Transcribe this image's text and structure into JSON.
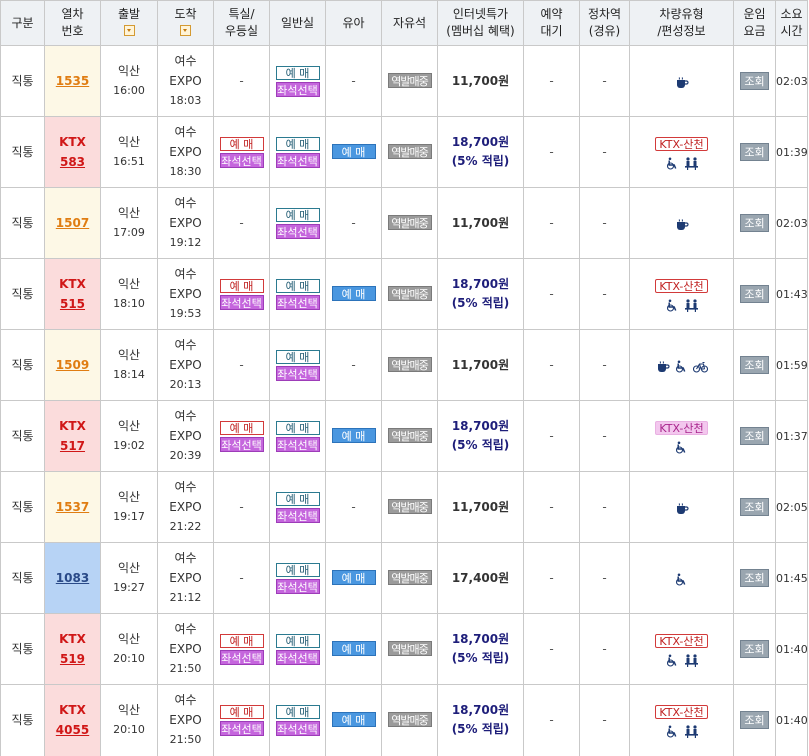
{
  "headers": {
    "type": "구분",
    "train_no": [
      "열차",
      "번호"
    ],
    "depart": "출발",
    "arrive": "도착",
    "special": [
      "특실/",
      "우등실"
    ],
    "general": "일반실",
    "infant": "유아",
    "free_seat": "자유석",
    "internet_price": [
      "인터넷특가",
      "(멤버십 혜택)"
    ],
    "reserve_wait": [
      "예약",
      "대기"
    ],
    "stop": [
      "정차역",
      "(경유)"
    ],
    "vehicle": [
      "차량유형",
      "/편성정보"
    ],
    "fare": [
      "운임",
      "요금"
    ],
    "duration": [
      "소요",
      "시간"
    ]
  },
  "labels": {
    "reserve": "예 매",
    "seat_select": "좌석선택",
    "infant_reserve": "예 매",
    "station_sale": "역발매중",
    "dash": "-",
    "view": "조회",
    "sancheon": "KTX-산천"
  },
  "trains": [
    {
      "type": "직통",
      "kind": "itx",
      "ktx_label": "",
      "number": "1535",
      "dep_station": "익산",
      "dep_time": "16:00",
      "arr_station": "여수",
      "arr_sub": "EXPO",
      "arr_time": "18:03",
      "special": false,
      "general": true,
      "infant": false,
      "price": "11,700원",
      "price_sub": "",
      "vehicle_badge": "",
      "icons": [
        "cafe-icon"
      ],
      "duration": "02:03"
    },
    {
      "type": "직통",
      "kind": "ktx",
      "ktx_label": "KTX",
      "number": "583",
      "dep_station": "익산",
      "dep_time": "16:51",
      "arr_station": "여수",
      "arr_sub": "EXPO",
      "arr_time": "18:30",
      "special": true,
      "general": true,
      "infant": true,
      "price": "18,700원",
      "price_sub": "(5% 적립)",
      "vehicle_badge": "KTX-산천",
      "icons": [
        "wheelchair-icon",
        "meeting-room-icon"
      ],
      "duration": "01:39"
    },
    {
      "type": "직통",
      "kind": "itx",
      "ktx_label": "",
      "number": "1507",
      "dep_station": "익산",
      "dep_time": "17:09",
      "arr_station": "여수",
      "arr_sub": "EXPO",
      "arr_time": "19:12",
      "special": false,
      "general": true,
      "infant": false,
      "price": "11,700원",
      "price_sub": "",
      "vehicle_badge": "",
      "icons": [
        "cafe-icon"
      ],
      "duration": "02:03"
    },
    {
      "type": "직통",
      "kind": "ktx",
      "ktx_label": "KTX",
      "number": "515",
      "dep_station": "익산",
      "dep_time": "18:10",
      "arr_station": "여수",
      "arr_sub": "EXPO",
      "arr_time": "19:53",
      "special": true,
      "general": true,
      "infant": true,
      "price": "18,700원",
      "price_sub": "(5% 적립)",
      "vehicle_badge": "KTX-산천",
      "icons": [
        "wheelchair-icon",
        "meeting-room-icon"
      ],
      "duration": "01:43"
    },
    {
      "type": "직통",
      "kind": "itx",
      "ktx_label": "",
      "number": "1509",
      "dep_station": "익산",
      "dep_time": "18:14",
      "arr_station": "여수",
      "arr_sub": "EXPO",
      "arr_time": "20:13",
      "special": false,
      "general": true,
      "infant": false,
      "price": "11,700원",
      "price_sub": "",
      "vehicle_badge": "",
      "icons": [
        "cafe-icon",
        "wheelchair-icon",
        "bicycle-icon"
      ],
      "duration": "01:59"
    },
    {
      "type": "직통",
      "kind": "ktx",
      "ktx_label": "KTX",
      "number": "517",
      "dep_station": "익산",
      "dep_time": "19:02",
      "arr_station": "여수",
      "arr_sub": "EXPO",
      "arr_time": "20:39",
      "special": true,
      "general": true,
      "infant": true,
      "price": "18,700원",
      "price_sub": "(5% 적립)",
      "vehicle_badge": "KTX-산천",
      "vehicle_badge_pink": true,
      "icons": [
        "wheelchair-icon"
      ],
      "duration": "01:37"
    },
    {
      "type": "직통",
      "kind": "itx",
      "ktx_label": "",
      "number": "1537",
      "dep_station": "익산",
      "dep_time": "19:17",
      "arr_station": "여수",
      "arr_sub": "EXPO",
      "arr_time": "21:22",
      "special": false,
      "general": true,
      "infant": false,
      "price": "11,700원",
      "price_sub": "",
      "vehicle_badge": "",
      "icons": [
        "cafe-icon"
      ],
      "duration": "02:05"
    },
    {
      "type": "직통",
      "kind": "mugung",
      "ktx_label": "",
      "number": "1083",
      "dep_station": "익산",
      "dep_time": "19:27",
      "arr_station": "여수",
      "arr_sub": "EXPO",
      "arr_time": "21:12",
      "special": false,
      "general": true,
      "infant": true,
      "price": "17,400원",
      "price_sub": "",
      "vehicle_badge": "",
      "icons": [
        "wheelchair-icon"
      ],
      "duration": "01:45"
    },
    {
      "type": "직통",
      "kind": "ktx",
      "ktx_label": "KTX",
      "number": "519",
      "dep_station": "익산",
      "dep_time": "20:10",
      "arr_station": "여수",
      "arr_sub": "EXPO",
      "arr_time": "21:50",
      "special": true,
      "general": true,
      "infant": true,
      "price": "18,700원",
      "price_sub": "(5% 적립)",
      "vehicle_badge": "KTX-산천",
      "icons": [
        "wheelchair-icon",
        "meeting-room-icon"
      ],
      "duration": "01:40"
    },
    {
      "type": "직통",
      "kind": "ktx",
      "ktx_label": "KTX",
      "number": "4055",
      "dep_station": "익산",
      "dep_time": "20:10",
      "arr_station": "여수",
      "arr_sub": "EXPO",
      "arr_time": "21:50",
      "special": true,
      "general": true,
      "infant": true,
      "price": "18,700원",
      "price_sub": "(5% 적립)",
      "vehicle_badge": "KTX-산천",
      "icons": [
        "wheelchair-icon",
        "meeting-room-icon"
      ],
      "duration": "01:40"
    }
  ]
}
